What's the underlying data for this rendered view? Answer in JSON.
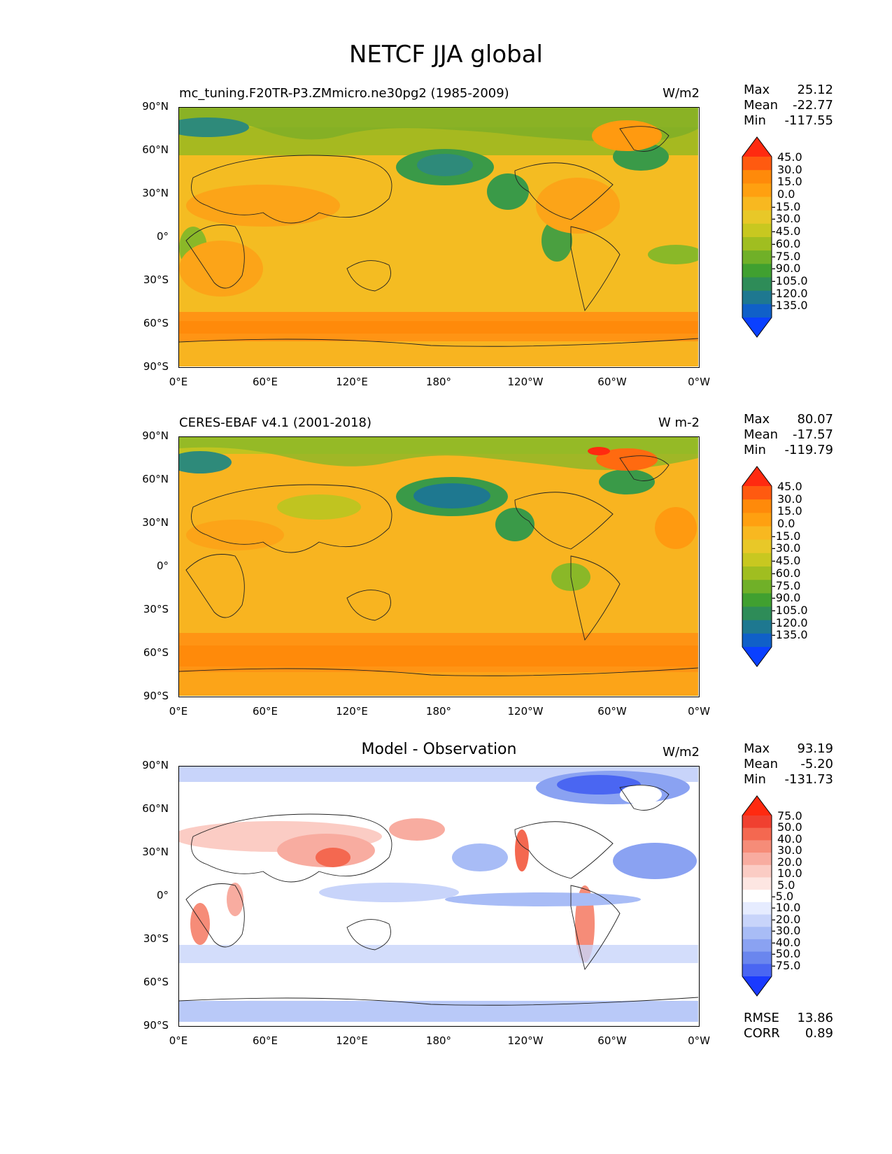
{
  "figure": {
    "title": "NETCF JJA global"
  },
  "lon_ticks": [
    "0°E",
    "60°E",
    "120°E",
    "180°",
    "120°W",
    "60°W",
    "0°W"
  ],
  "lat_ticks": [
    "90°N",
    "60°N",
    "30°N",
    "0°",
    "30°S",
    "60°S",
    "90°S"
  ],
  "panels": [
    {
      "title": "mc_tuning.F20TR-P3.ZMmicro.ne30pg2 (1985-2009)",
      "units": "W/m2",
      "stats": {
        "max_label": "Max",
        "max": "25.12",
        "mean_label": "Mean",
        "mean": "-22.77",
        "min_label": "Min",
        "min": "-117.55"
      },
      "levels": [
        "45.0",
        "30.0",
        "15.0",
        "0.0",
        "-15.0",
        "-30.0",
        "-45.0",
        "-60.0",
        "-75.0",
        "-90.0",
        "-105.0",
        "-120.0",
        "-135.0"
      ],
      "colors": [
        "#ff2a10",
        "#ff5a10",
        "#ff8a0a",
        "#ffa010",
        "#f8b820",
        "#e8c828",
        "#c8c820",
        "#a0be20",
        "#70b028",
        "#40a030",
        "#2e8c58",
        "#1e7890",
        "#1060c8",
        "#0a40ff"
      ]
    },
    {
      "title": "CERES-EBAF v4.1 (2001-2018)",
      "units": "W m-2",
      "stats": {
        "max_label": "Max",
        "max": "80.07",
        "mean_label": "Mean",
        "mean": "-17.57",
        "min_label": "Min",
        "min": "-119.79"
      },
      "levels": [
        "45.0",
        "30.0",
        "15.0",
        "0.0",
        "-15.0",
        "-30.0",
        "-45.0",
        "-60.0",
        "-75.0",
        "-90.0",
        "-105.0",
        "-120.0",
        "-135.0"
      ],
      "colors": [
        "#ff2a10",
        "#ff5a10",
        "#ff8a0a",
        "#ffa010",
        "#f8b820",
        "#e8c828",
        "#c8c820",
        "#a0be20",
        "#70b028",
        "#40a030",
        "#2e8c58",
        "#1e7890",
        "#1060c8",
        "#0a40ff"
      ]
    },
    {
      "title": "Model - Observation",
      "units": "W/m2",
      "stats": {
        "max_label": "Max",
        "max": "93.19",
        "mean_label": "Mean",
        "mean": "-5.20",
        "min_label": "Min",
        "min": "-131.73"
      },
      "levels": [
        "75.0",
        "50.0",
        "40.0",
        "30.0",
        "20.0",
        "10.0",
        "5.0",
        "-5.0",
        "-10.0",
        "-20.0",
        "-30.0",
        "-40.0",
        "-50.0",
        "-75.0"
      ],
      "colors": [
        "#ff2a10",
        "#f04030",
        "#f46850",
        "#f68c78",
        "#f8aca0",
        "#fbccc4",
        "#fde6e2",
        "#ffffff",
        "#e6ecff",
        "#c8d4fa",
        "#a8bcf6",
        "#8aa2f2",
        "#6a86ee",
        "#4a66f2",
        "#1a3aff"
      ],
      "extra": {
        "rmse_label": "RMSE",
        "rmse": "13.86",
        "corr_label": "CORR",
        "corr": "0.89"
      }
    }
  ]
}
